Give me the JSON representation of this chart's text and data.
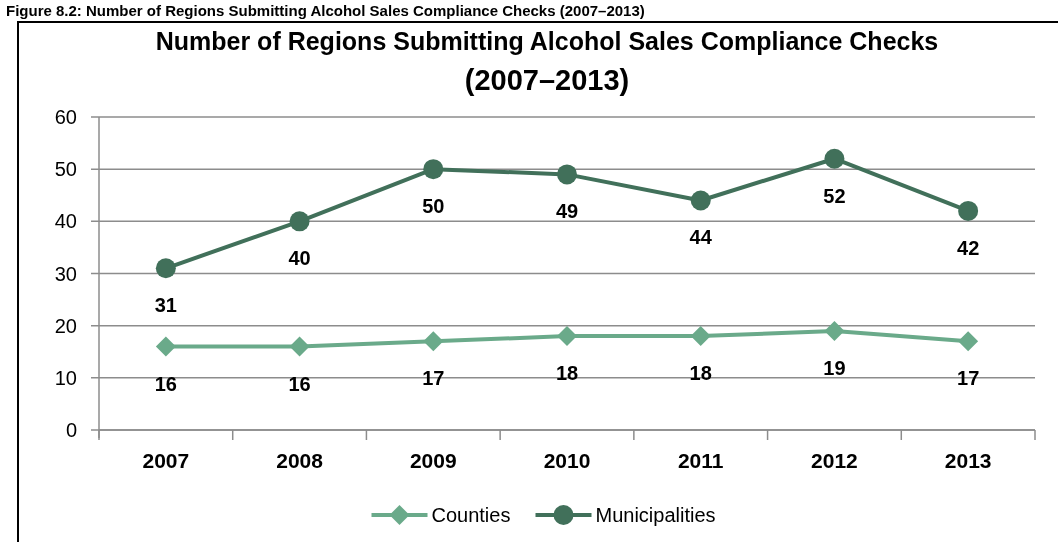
{
  "chart_data": {
    "type": "line",
    "title": "Number of Regions Submitting Alcohol Sales Compliance Checks\n(2007–2013)",
    "annotations": [
      "Figure 8.2: Number of Regions Submitting Alcohol Sales Compliance Checks (2007–2013)"
    ],
    "categories": [
      "2007",
      "2008",
      "2009",
      "2010",
      "2011",
      "2012",
      "2013"
    ],
    "series": [
      {
        "name": "Counties",
        "color": "#6aaa8a",
        "marker": "diamond",
        "values": [
          16,
          16,
          17,
          18,
          18,
          19,
          17
        ]
      },
      {
        "name": "Municipalities",
        "color": "#41705a",
        "marker": "circle",
        "values": [
          31,
          40,
          50,
          49,
          44,
          52,
          42
        ]
      }
    ],
    "ylim": [
      0,
      60
    ],
    "yticks": [
      0,
      10,
      20,
      30,
      40,
      50,
      60
    ],
    "grid": "y",
    "legend": "bottom",
    "data_labels": true
  }
}
